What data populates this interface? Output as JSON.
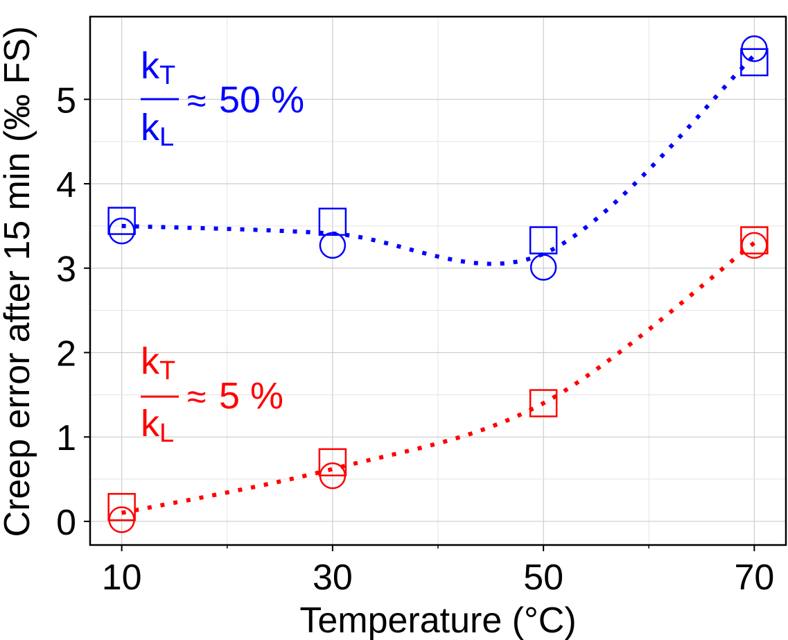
{
  "chart_data": {
    "type": "scatter",
    "xlabel": "Temperature (°C)",
    "ylabel": "Creep error after 15 min (‰ FS)",
    "xlim": [
      7,
      73
    ],
    "ylim": [
      -0.28,
      5.98
    ],
    "x_ticks": [
      10,
      30,
      50,
      70
    ],
    "y_ticks": [
      0,
      1,
      2,
      3,
      4,
      5
    ],
    "x_minor_gridlines": [
      20,
      40,
      60
    ],
    "grid": true,
    "series": [
      {
        "name": "kT/kL ≈ 50 %",
        "color": "#0000ff",
        "x": [
          10,
          30,
          50,
          70
        ],
        "squares": [
          3.56,
          3.55,
          3.33,
          5.44
        ],
        "circles": [
          3.44,
          3.27,
          3.01,
          5.6
        ],
        "trend": [
          3.5,
          3.41,
          3.17,
          5.52
        ],
        "annotation": {
          "numerator": "k",
          "numerator_sub": "T",
          "denominator": "k",
          "denominator_sub": "L",
          "relation": "≈",
          "value": "50 %"
        }
      },
      {
        "name": "kT/kL ≈ 5 %",
        "color": "#ff0000",
        "x": [
          10,
          30,
          50,
          70
        ],
        "squares": [
          0.17,
          0.7,
          1.4,
          3.33
        ],
        "circles": [
          0.02,
          0.54,
          null,
          3.27
        ],
        "trend": [
          0.1,
          0.62,
          1.4,
          3.3
        ],
        "annotation": {
          "numerator": "k",
          "numerator_sub": "T",
          "denominator": "k",
          "denominator_sub": "L",
          "relation": "≈",
          "value": "5 %"
        }
      }
    ]
  }
}
